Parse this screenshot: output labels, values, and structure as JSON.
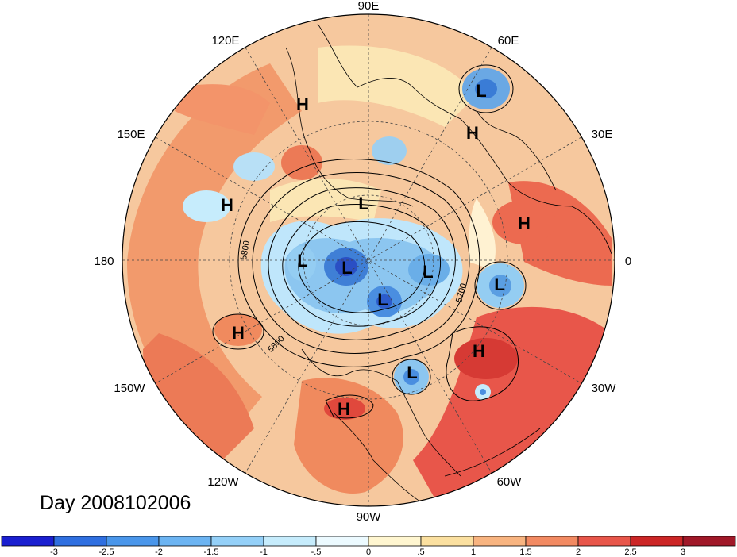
{
  "title": "Day 2008102006",
  "longitude_labels": [
    "90E",
    "60E",
    "30E",
    "0",
    "30W",
    "60W",
    "90W",
    "120W",
    "150W",
    "180",
    "150E",
    "120E"
  ],
  "contour_labels": [
    "5800",
    "5700",
    "5800"
  ],
  "pressure_centers": [
    {
      "type": "H"
    },
    {
      "type": "H"
    },
    {
      "type": "H"
    },
    {
      "type": "H"
    },
    {
      "type": "H"
    },
    {
      "type": "H"
    },
    {
      "type": "H"
    },
    {
      "type": "L"
    },
    {
      "type": "L"
    },
    {
      "type": "L"
    },
    {
      "type": "L"
    },
    {
      "type": "L"
    },
    {
      "type": "L"
    },
    {
      "type": "L"
    },
    {
      "type": "L"
    }
  ],
  "colorbar": {
    "ticks": [
      "-3",
      "-2.5",
      "-2",
      "-1.5",
      "-1",
      "-.5",
      "0",
      ".5",
      "1",
      "1.5",
      "2",
      "2.5",
      "3"
    ],
    "colors": [
      "#1a1fd0",
      "#2f6fe0",
      "#4a96ea",
      "#6cb4f2",
      "#94d0f8",
      "#c6ecfc",
      "#ecfaff",
      "#fff6d0",
      "#fbe0a0",
      "#f8b480",
      "#f28a62",
      "#e8564a",
      "#cc2626",
      "#a01828"
    ]
  },
  "colors": {
    "warm": "#f4a374",
    "cool": "#9ecfef",
    "land": "#f6e0b0"
  }
}
